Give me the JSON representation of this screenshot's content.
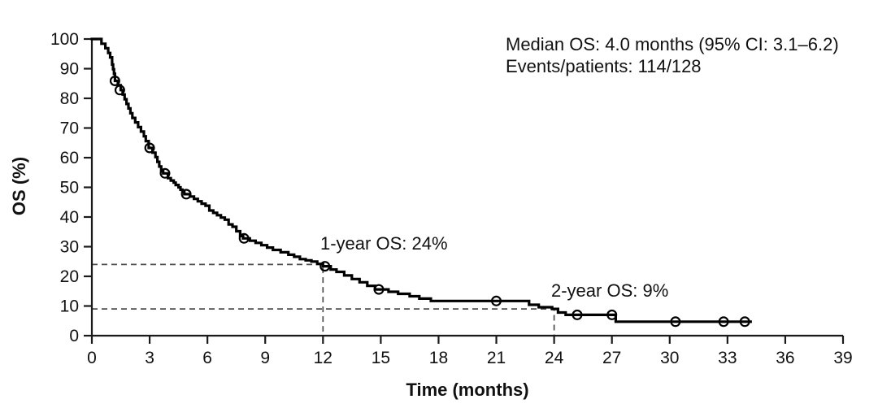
{
  "figure": {
    "type": "kaplan-meier-survival-plot",
    "background": "#ffffff"
  },
  "annotations": {
    "stats_line1": "Median OS: 4.0 months (95% CI: 3.1–6.2)",
    "stats_line2": "Events/patients: 114/128",
    "one_year_label": "1-year OS: 24%",
    "two_year_label": "2-year OS: 9%"
  },
  "axes": {
    "x_title": "Time (months)",
    "y_title": "OS (%)"
  },
  "colors": {
    "curve": "#000000",
    "axis": "#1a1a1a",
    "dashed_reference": "#4d4d4d",
    "censor_mark": "#000000"
  },
  "chart_data": {
    "type": "line",
    "subtype": "kaplan-meier-step",
    "title": "",
    "xlabel": "Time (months)",
    "ylabel": "OS (%)",
    "xlim": [
      0,
      39
    ],
    "ylim": [
      0,
      100
    ],
    "x_ticks": [
      0,
      3,
      6,
      9,
      12,
      15,
      18,
      21,
      24,
      27,
      30,
      33,
      36,
      39
    ],
    "y_ticks": [
      0,
      10,
      20,
      30,
      40,
      50,
      60,
      70,
      80,
      90,
      100
    ],
    "grid": false,
    "legend": "none",
    "median_os_months": 4.0,
    "ci95": [
      3.1,
      6.2
    ],
    "events": 114,
    "patients": 128,
    "one_year_os_pct": 24,
    "two_year_os_pct": 9,
    "start": [
      0,
      100
    ],
    "end_time": 34.2,
    "km_steps": [
      [
        0.5,
        98.4
      ],
      [
        0.7,
        96.9
      ],
      [
        0.85,
        95.3
      ],
      [
        0.95,
        93.8
      ],
      [
        1.05,
        91.4
      ],
      [
        1.1,
        89.8
      ],
      [
        1.15,
        88.3
      ],
      [
        1.2,
        85.9
      ],
      [
        1.35,
        84.4
      ],
      [
        1.5,
        82.8
      ],
      [
        1.6,
        81.3
      ],
      [
        1.7,
        79.7
      ],
      [
        1.8,
        78.1
      ],
      [
        1.9,
        76.6
      ],
      [
        2.0,
        75.0
      ],
      [
        2.1,
        73.4
      ],
      [
        2.25,
        71.9
      ],
      [
        2.4,
        70.3
      ],
      [
        2.55,
        68.8
      ],
      [
        2.7,
        67.2
      ],
      [
        2.8,
        65.6
      ],
      [
        2.95,
        63.3
      ],
      [
        3.15,
        61.7
      ],
      [
        3.3,
        60.2
      ],
      [
        3.4,
        58.6
      ],
      [
        3.5,
        57.0
      ],
      [
        3.6,
        55.5
      ],
      [
        3.7,
        54.7
      ],
      [
        3.95,
        53.1
      ],
      [
        4.1,
        52.3
      ],
      [
        4.25,
        51.6
      ],
      [
        4.35,
        50.8
      ],
      [
        4.5,
        50.0
      ],
      [
        4.6,
        49.2
      ],
      [
        4.7,
        48.4
      ],
      [
        4.8,
        47.7
      ],
      [
        5.1,
        46.9
      ],
      [
        5.3,
        46.1
      ],
      [
        5.5,
        45.3
      ],
      [
        5.7,
        44.5
      ],
      [
        5.9,
        43.8
      ],
      [
        6.1,
        42.2
      ],
      [
        6.3,
        41.4
      ],
      [
        6.5,
        40.6
      ],
      [
        6.7,
        39.8
      ],
      [
        6.9,
        39.1
      ],
      [
        7.1,
        37.5
      ],
      [
        7.3,
        36.7
      ],
      [
        7.5,
        35.2
      ],
      [
        7.7,
        33.6
      ],
      [
        7.85,
        32.8
      ],
      [
        8.2,
        32.0
      ],
      [
        8.5,
        31.3
      ],
      [
        8.8,
        30.5
      ],
      [
        9.1,
        29.7
      ],
      [
        9.4,
        28.9
      ],
      [
        9.8,
        28.1
      ],
      [
        10.2,
        27.3
      ],
      [
        10.5,
        26.6
      ],
      [
        10.8,
        25.8
      ],
      [
        11.1,
        25.4
      ],
      [
        11.4,
        25.0
      ],
      [
        11.7,
        24.2
      ],
      [
        12.0,
        23.4
      ],
      [
        12.4,
        22.3
      ],
      [
        12.7,
        21.5
      ],
      [
        13.1,
        20.3
      ],
      [
        13.5,
        19.1
      ],
      [
        13.9,
        18.0
      ],
      [
        14.3,
        16.8
      ],
      [
        14.7,
        15.6
      ],
      [
        15.4,
        14.8
      ],
      [
        15.9,
        14.1
      ],
      [
        16.5,
        13.3
      ],
      [
        17.0,
        12.5
      ],
      [
        17.6,
        11.7
      ],
      [
        22.7,
        10.4
      ],
      [
        23.2,
        9.6
      ],
      [
        23.9,
        9.0
      ],
      [
        24.2,
        7.8
      ],
      [
        24.6,
        7.0
      ],
      [
        27.2,
        4.7
      ]
    ],
    "censor_marks": [
      [
        1.2,
        85.9
      ],
      [
        1.45,
        82.8
      ],
      [
        3.0,
        63.3
      ],
      [
        3.8,
        54.7
      ],
      [
        4.9,
        47.7
      ],
      [
        7.9,
        32.8
      ],
      [
        12.1,
        23.4
      ],
      [
        14.9,
        15.6
      ],
      [
        21.0,
        11.7
      ],
      [
        25.2,
        7.0
      ],
      [
        27.0,
        7.0
      ],
      [
        30.3,
        4.7
      ],
      [
        32.8,
        4.7
      ],
      [
        33.9,
        4.7
      ]
    ],
    "reference_lines": [
      {
        "x": 12,
        "y": 24,
        "label": "1-year OS: 24%"
      },
      {
        "x": 24,
        "y": 9,
        "label": "2-year OS: 9%"
      }
    ]
  }
}
